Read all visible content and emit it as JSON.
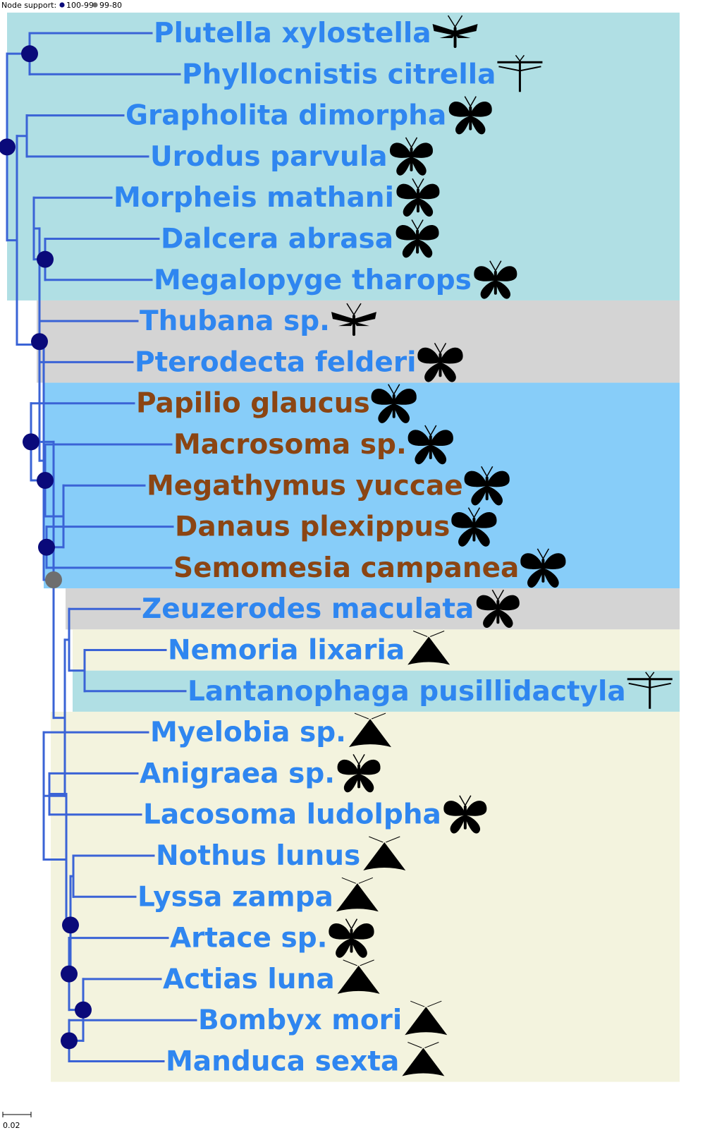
{
  "legend": {
    "label": "Node support:",
    "items": [
      {
        "label": "100-99",
        "color": "#0a0a7a"
      },
      {
        "label": "99-80",
        "color": "#6e6e6e"
      }
    ]
  },
  "scale": {
    "label": "0.02"
  },
  "colors": {
    "branch": "#3a63d6",
    "text_blue": "#2f86f0",
    "text_brown": "#8b4513",
    "band_cyan": "#b0dfe4",
    "band_gray": "#d4d4d4",
    "band_blue": "#87cdf9",
    "band_cream": "#f3f3de",
    "silhouette": "#000000"
  },
  "taxa": [
    {
      "name": "Plutella xylostella",
      "color": "blue",
      "icon": "narrow-moth-icon"
    },
    {
      "name": "Phyllocnistis citrella",
      "color": "blue",
      "icon": "plume-moth-icon"
    },
    {
      "name": "Grapholita dimorpha",
      "color": "blue",
      "icon": "moth-icon"
    },
    {
      "name": "Urodus parvula",
      "color": "blue",
      "icon": "moth-icon"
    },
    {
      "name": "Morpheis mathani",
      "color": "blue",
      "icon": "moth-icon"
    },
    {
      "name": "Dalcera abrasa",
      "color": "blue",
      "icon": "moth-icon"
    },
    {
      "name": "Megalopyge tharops",
      "color": "blue",
      "icon": "moth-icon"
    },
    {
      "name": "Thubana sp.",
      "color": "blue",
      "icon": "narrow-moth-icon"
    },
    {
      "name": "Pterodecta felderi",
      "color": "blue",
      "icon": "butterfly-icon"
    },
    {
      "name": "Papilio glaucus",
      "color": "brown",
      "icon": "butterfly-icon"
    },
    {
      "name": "Macrosoma sp.",
      "color": "brown",
      "icon": "butterfly-icon"
    },
    {
      "name": "Megathymus yuccae",
      "color": "brown",
      "icon": "butterfly-icon"
    },
    {
      "name": "Danaus plexippus",
      "color": "brown",
      "icon": "butterfly-icon"
    },
    {
      "name": "Semomesia campanea",
      "color": "brown",
      "icon": "butterfly-icon"
    },
    {
      "name": "Zeuzerodes maculata",
      "color": "blue",
      "icon": "moth-icon"
    },
    {
      "name": "Nemoria lixaria",
      "color": "blue",
      "icon": "triangle-moth-icon"
    },
    {
      "name": "Lantanophaga pusillidactyla",
      "color": "blue",
      "icon": "plume-moth-icon"
    },
    {
      "name": "Myelobia sp.",
      "color": "blue",
      "icon": "triangle-moth-icon"
    },
    {
      "name": "Anigraea sp.",
      "color": "blue",
      "icon": "moth-icon"
    },
    {
      "name": "Lacosoma ludolpha",
      "color": "blue",
      "icon": "moth-icon"
    },
    {
      "name": "Nothus lunus",
      "color": "blue",
      "icon": "triangle-moth-icon"
    },
    {
      "name": "Lyssa zampa",
      "color": "blue",
      "icon": "triangle-moth-icon"
    },
    {
      "name": "Artace sp.",
      "color": "blue",
      "icon": "butterfly-icon"
    },
    {
      "name": "Actias luna",
      "color": "blue",
      "icon": "triangle-moth-icon"
    },
    {
      "name": "Bombyx mori",
      "color": "blue",
      "icon": "triangle-moth-icon"
    },
    {
      "name": "Manduca sexta",
      "color": "blue",
      "icon": "triangle-moth-icon"
    }
  ],
  "highlight_bands": [
    {
      "color": "cyan",
      "from": "Plutella xylostella",
      "to": "Megalopyge tharops"
    },
    {
      "color": "gray",
      "from": "Thubana sp.",
      "to": "Pterodecta felderi"
    },
    {
      "color": "blue",
      "from": "Papilio glaucus",
      "to": "Semomesia campanea"
    },
    {
      "color": "gray",
      "from": "Zeuzerodes maculata",
      "to": "Zeuzerodes maculata"
    },
    {
      "color": "cream",
      "from": "Nemoria lixaria",
      "to": "Nemoria lixaria"
    },
    {
      "color": "cyan",
      "from": "Lantanophaga pusillidactyla",
      "to": "Lantanophaga pusillidactyla"
    },
    {
      "color": "cream",
      "from": "Myelobia sp.",
      "to": "Manduca sexta"
    }
  ],
  "tree": {
    "support": "100-99",
    "children": [
      {
        "support": "100-99",
        "children": [
          {
            "leaf": 0
          },
          {
            "leaf": 1
          }
        ]
      },
      {
        "children": [
          {
            "children": [
              {
                "leaf": 2
              },
              {
                "leaf": 3
              }
            ]
          },
          {
            "children": [
              {
                "children": [
                  {
                    "leaf": 4
                  },
                  {
                    "support": "100-99",
                    "children": [
                      {
                        "leaf": 5
                      },
                      {
                        "leaf": 6
                      }
                    ]
                  }
                ]
              },
              {
                "children": [
                  {
                    "support": "100-99",
                    "children": [
                      {
                        "leaf": 7
                      },
                      {
                        "leaf": 8
                      }
                    ]
                  },
                  {
                    "support": "99-80",
                    "children": [
                      {
                        "support": "100-99",
                        "children": [
                          {
                            "leaf": 9
                          },
                          {
                            "support": "100-99",
                            "children": [
                              {
                                "leaf": 10
                              },
                              {
                                "children": [
                                  {
                                    "leaf": 11
                                  },
                                  {
                                    "support": "100-99",
                                    "children": [
                                      {
                                        "leaf": 12
                                      },
                                      {
                                        "leaf": 13
                                      }
                                    ]
                                  }
                                ]
                              }
                            ]
                          }
                        ]
                      },
                      {
                        "children": [
                          {
                            "children": [
                              {
                                "leaf": 14
                              },
                              {
                                "children": [
                                  {
                                    "leaf": 15
                                  },
                                  {
                                    "leaf": 16
                                  }
                                ]
                              }
                            ]
                          },
                          {
                            "children": [
                              {
                                "leaf": 17
                              },
                              {
                                "children": [
                                  {
                                    "children": [
                                      {
                                        "leaf": 18
                                      },
                                      {
                                        "leaf": 19
                                      }
                                    ]
                                  },
                                  {
                                    "support": "100-99",
                                    "children": [
                                      {
                                        "children": [
                                          {
                                            "leaf": 20
                                          },
                                          {
                                            "leaf": 21
                                          }
                                        ]
                                      },
                                      {
                                        "support": "100-99",
                                        "children": [
                                          {
                                            "leaf": 22
                                          },
                                          {
                                            "support": "100-99",
                                            "children": [
                                              {
                                                "leaf": 23
                                              },
                                              {
                                                "support": "100-99",
                                                "children": [
                                                  {
                                                    "leaf": 24
                                                  },
                                                  {
                                                    "leaf": 25
                                                  }
                                                ]
                                              }
                                            ]
                                          }
                                        ]
                                      }
                                    ]
                                  }
                                ]
                              }
                            ]
                          }
                        ]
                      }
                    ]
                  }
                ]
              }
            ]
          }
        ]
      }
    ]
  }
}
